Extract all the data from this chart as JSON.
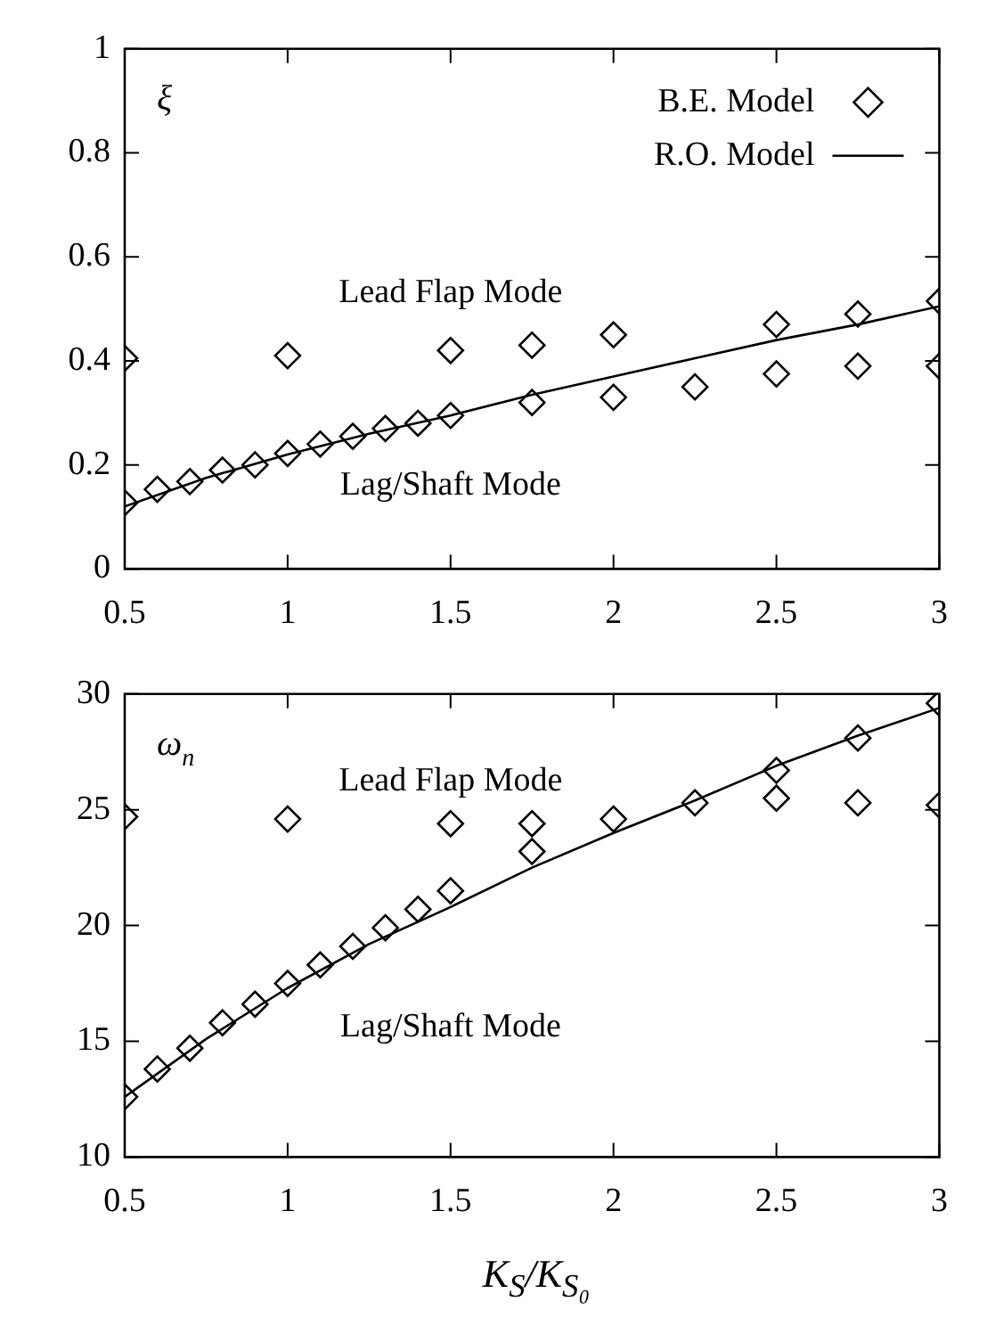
{
  "chart_data": [
    {
      "type": "scatter",
      "ylabel": "ξ",
      "xlim": [
        0.5,
        3
      ],
      "ylim": [
        0,
        1
      ],
      "xticks": [
        0.5,
        1,
        1.5,
        2,
        2.5,
        3
      ],
      "yticks": [
        0,
        0.2,
        0.4,
        0.6,
        0.8,
        1
      ],
      "grid": false,
      "legend": "top right",
      "annotations": [
        "Lead Flap Mode",
        "Lag/Shaft Mode"
      ],
      "series": [
        {
          "name": "B.E. Model",
          "type": "scatter",
          "marker": "diamond",
          "color": "#000000",
          "x": [
            0.5,
            1,
            1.5,
            1.75,
            2,
            2.5,
            2.75,
            3,
            0.5,
            0.6,
            0.7,
            0.8,
            0.9,
            1.0,
            1.1,
            1.2,
            1.3,
            1.4,
            1.5,
            1.75,
            2,
            2.25,
            2.5,
            2.75,
            3
          ],
          "values": [
            0.405,
            0.41,
            0.42,
            0.43,
            0.45,
            0.47,
            0.49,
            0.515,
            0.127,
            0.153,
            0.168,
            0.19,
            0.2,
            0.222,
            0.24,
            0.255,
            0.27,
            0.28,
            0.295,
            0.32,
            0.33,
            0.35,
            0.375,
            0.39,
            0.39
          ]
        },
        {
          "name": "R.O. Model",
          "type": "line",
          "marker": "none",
          "line_style": "solid",
          "color": "#000000",
          "x": [
            0.5,
            0.75,
            1,
            1.25,
            1.5,
            1.75,
            2,
            2.25,
            2.5,
            2.75,
            3
          ],
          "values": [
            0.12,
            0.175,
            0.22,
            0.26,
            0.295,
            0.335,
            0.37,
            0.405,
            0.44,
            0.47,
            0.505
          ]
        }
      ]
    },
    {
      "type": "scatter",
      "ylabel": "ω$_{n}$",
      "xlabel": "K$_{S}$/K$_{S₀}$",
      "xlim": [
        0.5,
        3
      ],
      "ylim": [
        10,
        30
      ],
      "xticks": [
        0.5,
        1,
        1.5,
        2,
        2.5,
        3
      ],
      "yticks": [
        10,
        15,
        20,
        25,
        30
      ],
      "grid": false,
      "annotations": [
        "Lead Flap Mode",
        "Lag/Shaft Mode"
      ],
      "series": [
        {
          "type": "scatter",
          "marker": "diamond",
          "color": "#000000",
          "x": [
            0.5,
            1,
            1.5,
            1.75,
            2,
            2.5,
            2.75,
            3,
            0.5,
            0.6,
            0.7,
            0.8,
            0.9,
            1.0,
            1.1,
            1.2,
            1.3,
            1.4,
            1.5,
            1.75,
            2.25,
            2.5,
            2.75,
            3
          ],
          "values": [
            24.7,
            24.6,
            24.4,
            24.4,
            24.6,
            25.5,
            25.3,
            25.2,
            12.6,
            13.8,
            14.7,
            15.8,
            16.6,
            17.5,
            18.3,
            19.1,
            19.9,
            20.7,
            21.5,
            23.2,
            25.3,
            26.7,
            28.1,
            29.6
          ]
        },
        {
          "type": "line",
          "marker": "none",
          "line_style": "solid",
          "color": "#000000",
          "x": [
            0.5,
            0.75,
            1,
            1.25,
            1.5,
            1.75,
            2,
            2.25,
            2.5,
            2.75,
            3
          ],
          "values": [
            12.6,
            15.1,
            17.3,
            19.2,
            20.8,
            22.5,
            24.0,
            25.4,
            26.9,
            28.2,
            29.4
          ]
        }
      ]
    }
  ]
}
